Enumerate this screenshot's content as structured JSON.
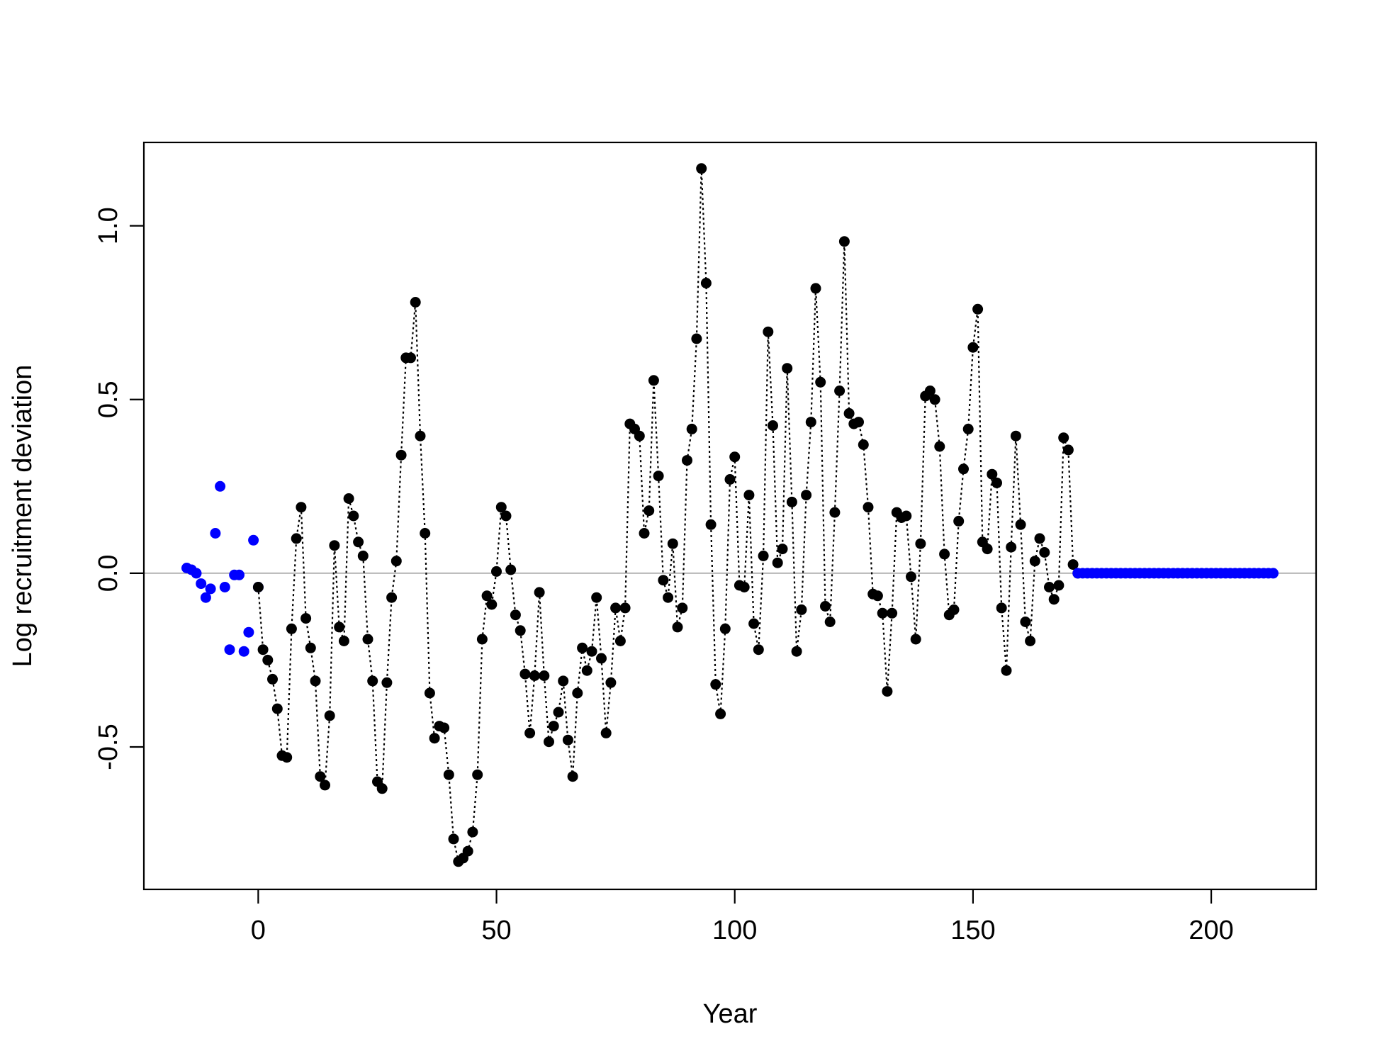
{
  "chart_data": {
    "type": "scatter",
    "xlabel": "Year",
    "ylabel": "Log recruitment deviation",
    "xlim": [
      -24,
      222
    ],
    "ylim": [
      -0.91,
      1.24
    ],
    "xticks": [
      0,
      50,
      100,
      150,
      200
    ],
    "xtick_labels": [
      "0",
      "50",
      "100",
      "150",
      "200"
    ],
    "yticks": [
      -0.5,
      0.0,
      0.5,
      1.0
    ],
    "ytick_labels": [
      "-0.5",
      "0.0",
      "0.5",
      "1.0"
    ],
    "reference_line": {
      "y": 0,
      "color": "#bebebe"
    },
    "grid": false,
    "legend": "none",
    "colors": {
      "main": "#000000",
      "early_late": "#0000ff"
    },
    "series": [
      {
        "color": "#0000ff",
        "x": [
          -15,
          -14,
          -13,
          -12,
          -11,
          -10,
          -9,
          -8,
          -7,
          -6,
          -5,
          -4,
          -3,
          -2,
          -1,
          0
        ],
        "y": [
          0.015,
          0.01,
          0.0,
          -0.03,
          -0.07,
          -0.045,
          0.115,
          0.25,
          -0.04,
          -0.22,
          -0.005,
          -0.005,
          -0.225,
          -0.17,
          0.095,
          -0.04
        ]
      },
      {
        "color": "#000000",
        "connected": true,
        "x": [
          0,
          1,
          2,
          3,
          4,
          5,
          6,
          7,
          8,
          9,
          10,
          11,
          12,
          13,
          14,
          15,
          16,
          17,
          18,
          19,
          20,
          21,
          22,
          23,
          24,
          25,
          26,
          27,
          28,
          29,
          30,
          31,
          32,
          33,
          34,
          35,
          36,
          37,
          38,
          39,
          40,
          41,
          42,
          43,
          44,
          45,
          46,
          47,
          48,
          49,
          50,
          51,
          52,
          53,
          54,
          55,
          56,
          57,
          58,
          59,
          60,
          61,
          62,
          63,
          64,
          65,
          66,
          67,
          68,
          69,
          70,
          71,
          72,
          73,
          74,
          75,
          76,
          77,
          78,
          79,
          80,
          81,
          82,
          83,
          84,
          85,
          86,
          87,
          88,
          89,
          90,
          91,
          92,
          93,
          94,
          95,
          96,
          97,
          98,
          99,
          100,
          101,
          102,
          103,
          104,
          105,
          106,
          107,
          108,
          109,
          110,
          111,
          112,
          113,
          114,
          115,
          116,
          117,
          118,
          119,
          120,
          121,
          122,
          123,
          124,
          125,
          126,
          127,
          128,
          129,
          130,
          131,
          132,
          133,
          134,
          135,
          136,
          137,
          138,
          139,
          140,
          141,
          142,
          143,
          144,
          145,
          146,
          147,
          148,
          149,
          150,
          151,
          152,
          153,
          154,
          155,
          156,
          157,
          158,
          159,
          160,
          161,
          162,
          163,
          164,
          165,
          166,
          167,
          168,
          169,
          170,
          171,
          172
        ],
        "y": [
          -0.04,
          -0.22,
          -0.25,
          -0.305,
          -0.39,
          -0.525,
          -0.53,
          -0.16,
          0.1,
          0.19,
          -0.13,
          -0.215,
          -0.31,
          -0.585,
          -0.61,
          -0.41,
          0.08,
          -0.155,
          -0.195,
          0.215,
          0.165,
          0.09,
          0.05,
          -0.19,
          -0.31,
          -0.6,
          -0.62,
          -0.315,
          -0.07,
          0.035,
          0.34,
          0.62,
          0.62,
          0.78,
          0.395,
          0.115,
          -0.345,
          -0.475,
          -0.44,
          -0.445,
          -0.58,
          -0.765,
          -0.83,
          -0.82,
          -0.8,
          -0.745,
          -0.58,
          -0.19,
          -0.065,
          -0.09,
          0.005,
          0.19,
          0.165,
          0.01,
          -0.12,
          -0.165,
          -0.29,
          -0.46,
          -0.295,
          -0.055,
          -0.295,
          -0.485,
          -0.44,
          -0.4,
          -0.31,
          -0.48,
          -0.585,
          -0.345,
          -0.215,
          -0.28,
          -0.225,
          -0.07,
          -0.245,
          -0.46,
          -0.315,
          -0.1,
          -0.195,
          -0.1,
          0.43,
          0.415,
          0.395,
          0.115,
          0.18,
          0.555,
          0.28,
          -0.02,
          -0.07,
          0.085,
          -0.155,
          -0.1,
          0.325,
          0.415,
          0.675,
          1.165,
          0.835,
          0.14,
          -0.32,
          -0.405,
          -0.16,
          0.27,
          0.335,
          -0.035,
          -0.04,
          0.225,
          -0.145,
          -0.22,
          0.05,
          0.695,
          0.425,
          0.03,
          0.07,
          0.59,
          0.205,
          -0.225,
          -0.105,
          0.225,
          0.435,
          0.82,
          0.55,
          -0.095,
          -0.14,
          0.175,
          0.525,
          0.955,
          0.46,
          0.43,
          0.435,
          0.37,
          0.19,
          -0.06,
          -0.065,
          -0.115,
          -0.34,
          -0.115,
          0.175,
          0.16,
          0.165,
          -0.01,
          -0.19,
          0.085,
          0.51,
          0.525,
          0.5,
          0.365,
          0.055,
          -0.12,
          -0.105,
          0.15,
          0.3,
          0.415,
          0.65,
          0.76,
          0.09,
          0.07,
          0.285,
          0.26,
          -0.1,
          -0.28,
          0.075,
          0.395,
          0.14,
          -0.14,
          -0.195,
          0.035,
          0.1,
          0.06,
          -0.04,
          -0.075,
          -0.035,
          0.39,
          0.355,
          0.025,
          0.0
        ]
      },
      {
        "color": "#0000ff",
        "x": [
          172,
          173,
          174,
          175,
          176,
          177,
          178,
          179,
          180,
          181,
          182,
          183,
          184,
          185,
          186,
          187,
          188,
          189,
          190,
          191,
          192,
          193,
          194,
          195,
          196,
          197,
          198,
          199,
          200,
          201,
          202,
          203,
          204,
          205,
          206,
          207,
          208,
          209,
          210,
          211,
          212,
          213
        ],
        "y": [
          0,
          0,
          0,
          0,
          0,
          0,
          0,
          0,
          0,
          0,
          0,
          0,
          0,
          0,
          0,
          0,
          0,
          0,
          0,
          0,
          0,
          0,
          0,
          0,
          0,
          0,
          0,
          0,
          0,
          0,
          0,
          0,
          0,
          0,
          0,
          0,
          0,
          0,
          0,
          0,
          0,
          0
        ]
      }
    ]
  }
}
